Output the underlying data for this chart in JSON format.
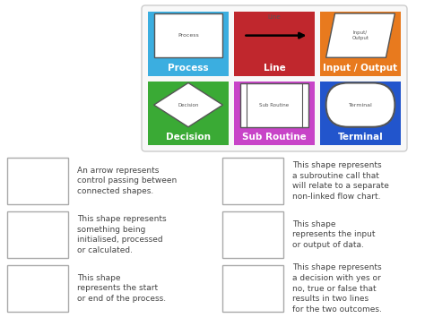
{
  "bg_color": "#ffffff",
  "symbol_boxes": [
    {
      "label": "Process",
      "color": "#3baee0",
      "text_color": "#ffffff",
      "shape": "rectangle"
    },
    {
      "label": "Line",
      "color": "#c0272d",
      "text_color": "#ffffff",
      "shape": "arrow"
    },
    {
      "label": "Input / Output",
      "color": "#e87a1e",
      "text_color": "#ffffff",
      "shape": "parallelogram"
    },
    {
      "label": "Decision",
      "color": "#3aaa35",
      "text_color": "#ffffff",
      "shape": "diamond"
    },
    {
      "label": "Sub Routine",
      "color": "#c844c8",
      "text_color": "#ffffff",
      "shape": "subroutine"
    },
    {
      "label": "Terminal",
      "color": "#2255cc",
      "text_color": "#ffffff",
      "shape": "terminal"
    }
  ],
  "match_items": [
    {
      "left_text": "An arrow represents\ncontrol passing between\nconnected shapes.",
      "right_text": "This shape represents\na subroutine call that\nwill relate to a separate\nnon-linked flow chart."
    },
    {
      "left_text": "This shape represents\nsomething being\ninitialised, processed\nor calculated.",
      "right_text": "This shape\nrepresents the input\nor output of data."
    },
    {
      "left_text": "This shape\nrepresents the start\nor end of the process.",
      "right_text": "This shape represents\na decision with yes or\nno, true or false that\nresults in two lines\nfor the two outcomes."
    }
  ],
  "match_box_color": "#ffffff",
  "match_box_edge": "#aaaaaa",
  "text_color": "#444444"
}
